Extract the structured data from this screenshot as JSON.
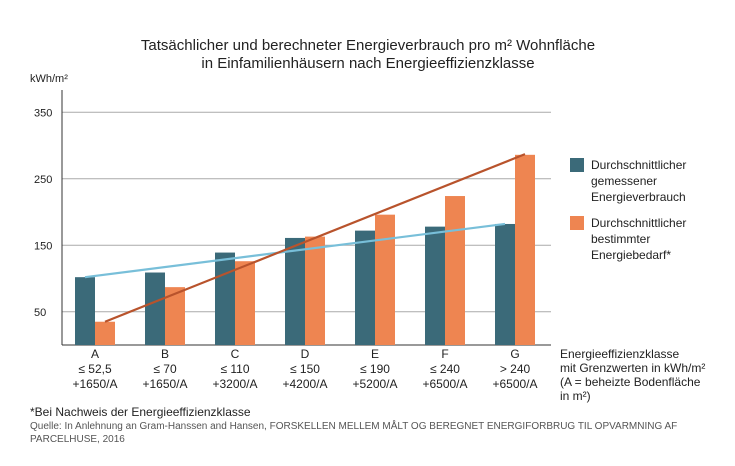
{
  "chart_data": {
    "type": "bar",
    "title": [
      "Tatsächlicher und berechneter Energieverbrauch pro m² Wohnfläche",
      "in Einfamilienhäusern nach Energieeffizienzklasse"
    ],
    "ylabel": "kWh/m²",
    "ylim": [
      0,
      370
    ],
    "yticks": [
      50,
      150,
      250,
      350
    ],
    "grid": true,
    "legend_position": "right",
    "categories": [
      [
        "A",
        "≤ 52,5",
        "+1650/A"
      ],
      [
        "B",
        "≤ 70",
        "+1650/A"
      ],
      [
        "C",
        "≤ 110",
        "+3200/A"
      ],
      [
        "D",
        "≤ 150",
        "+4200/A"
      ],
      [
        "E",
        "≤ 190",
        "+5200/A"
      ],
      [
        "F",
        "≤ 240",
        "+6500/A"
      ],
      [
        "G",
        "> 240",
        "+6500/A"
      ]
    ],
    "xlabel": [
      "Energieeffizienzklasse",
      "mit Grenzwerten in kWh/m²",
      "(A = beheizte Bodenfläche",
      "in m²)"
    ],
    "series": [
      {
        "name": [
          "Durchschnittlicher",
          "gemessener",
          "Energieverbrauch"
        ],
        "color": "#3b6a79",
        "trend_color": "#78bfd9",
        "values": [
          102,
          109,
          139,
          161,
          172,
          178,
          182
        ]
      },
      {
        "name": [
          "Durchschnittlicher",
          "bestimmter",
          "Energiebedarf*"
        ],
        "color": "#ee8551",
        "trend_color": "#b8532c",
        "values": [
          35,
          87,
          126,
          163,
          196,
          224,
          286
        ]
      }
    ],
    "trendlines": [
      {
        "series": 0,
        "from": 102,
        "to": 182
      },
      {
        "series": 1,
        "from": 35,
        "to": 287
      }
    ]
  },
  "footnote": "*Bei Nachweis der Energieeffizienzklasse",
  "source": "Quelle: In Anlehnung an Gram-Hanssen and Hansen, FORSKELLEN MELLEM MÅLT OG BEREGNET ENERGIFORBRUG TIL OPVARMNING AF PARCELHUSE, 2016"
}
